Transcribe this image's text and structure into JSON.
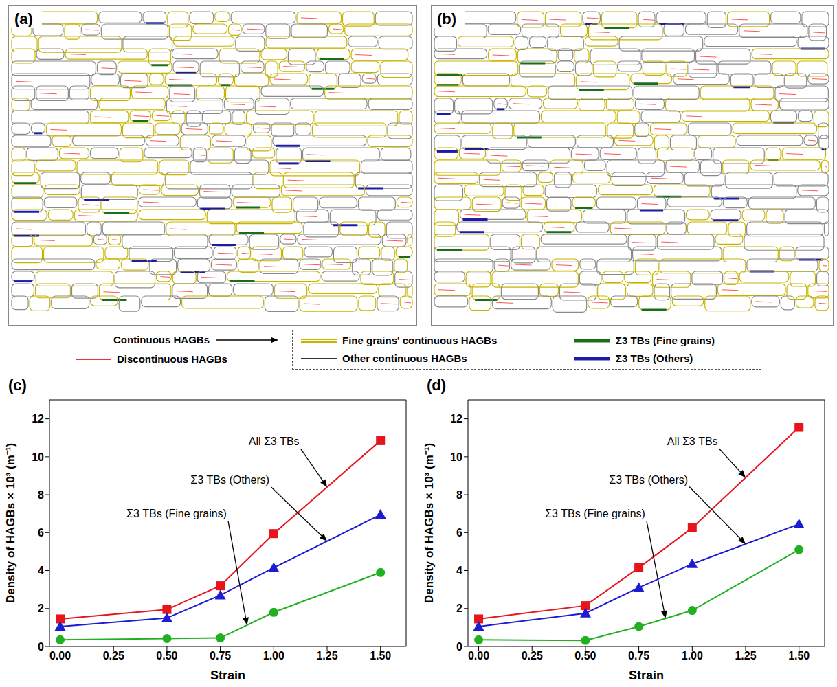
{
  "maps": [
    {
      "label": "(a)"
    },
    {
      "label": "(b)"
    }
  ],
  "legend": {
    "continuous": {
      "label": "Continuous HAGBs"
    },
    "discontinuous": {
      "label": "Discontinuous HAGBs",
      "color": "#ff2a2a"
    },
    "continuous_items": [
      {
        "label": "Fine grains' continuous HAGBs",
        "color": "#c8b400"
      },
      {
        "label": "Other continuous HAGBs",
        "color": "#333333"
      }
    ],
    "twin_items": [
      {
        "label": "Σ3 TBs (Fine grains)",
        "color": "#1a6e1a"
      },
      {
        "label": "Σ3 TBs (Others)",
        "color": "#1c1ca8"
      }
    ]
  },
  "chart_data": [
    {
      "type": "line",
      "panel_label": "(c)",
      "x_label": "Strain",
      "y_label": "Density of HAGBs × 10³ (m⁻¹)",
      "x": [
        0,
        0.5,
        0.75,
        1.0,
        1.5
      ],
      "xlim": [
        -0.05,
        1.62
      ],
      "xticks": [
        {
          "value": 0,
          "label": "0.00"
        },
        {
          "value": 0.25,
          "label": "0.25"
        },
        {
          "value": 0.5,
          "label": "0.50"
        },
        {
          "value": 0.75,
          "label": "0.75"
        },
        {
          "value": 1.0,
          "label": "1.00"
        },
        {
          "value": 1.25,
          "label": "1.25"
        },
        {
          "value": 1.5,
          "label": "1.50"
        }
      ],
      "ylim": [
        0,
        13
      ],
      "yticks": [
        0,
        2,
        4,
        6,
        8,
        10,
        12
      ],
      "grid": false,
      "series": [
        {
          "name": "All Σ3 TBs",
          "color": "#e8141c",
          "marker": "square",
          "values": [
            1.45,
            1.95,
            3.2,
            5.95,
            10.85
          ]
        },
        {
          "name": "Σ3 TBs (Others)",
          "color": "#1c1cd0",
          "marker": "triangle",
          "values": [
            1.05,
            1.5,
            2.7,
            4.15,
            6.95
          ]
        },
        {
          "name": "Σ3 TBs (Fine grains)",
          "color": "#22b022",
          "marker": "circle",
          "values": [
            0.35,
            0.42,
            0.45,
            1.8,
            3.9
          ]
        }
      ]
    },
    {
      "type": "line",
      "panel_label": "(d)",
      "x_label": "Strain",
      "y_label": "Density of HAGBs × 10³ (m⁻¹)",
      "x": [
        0,
        0.5,
        0.75,
        1.0,
        1.5
      ],
      "xlim": [
        -0.05,
        1.62
      ],
      "xticks": [
        {
          "value": 0,
          "label": "0.00"
        },
        {
          "value": 0.25,
          "label": "0.25"
        },
        {
          "value": 0.5,
          "label": "0.50"
        },
        {
          "value": 0.75,
          "label": "0.75"
        },
        {
          "value": 1.0,
          "label": "1.00"
        },
        {
          "value": 1.25,
          "label": "1.25"
        },
        {
          "value": 1.5,
          "label": "1.50"
        }
      ],
      "ylim": [
        0,
        13
      ],
      "yticks": [
        0,
        2,
        4,
        6,
        8,
        10,
        12
      ],
      "grid": false,
      "series": [
        {
          "name": "All Σ3 TBs",
          "color": "#e8141c",
          "marker": "square",
          "values": [
            1.45,
            2.15,
            4.15,
            6.25,
            11.55
          ]
        },
        {
          "name": "Σ3 TBs (Others)",
          "color": "#1c1cd0",
          "marker": "triangle",
          "values": [
            1.05,
            1.75,
            3.1,
            4.35,
            6.45
          ]
        },
        {
          "name": "Σ3 TBs (Fine grains)",
          "color": "#22b022",
          "marker": "circle",
          "values": [
            0.35,
            0.32,
            1.05,
            1.9,
            5.1
          ]
        }
      ]
    }
  ]
}
